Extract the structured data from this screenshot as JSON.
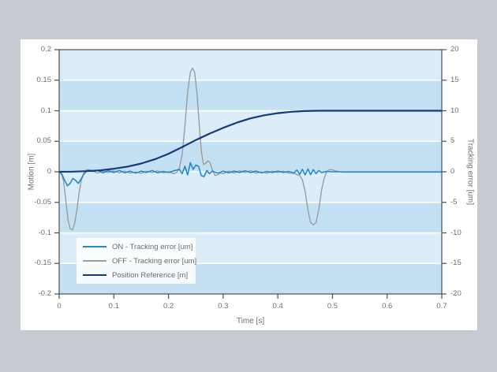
{
  "window": {
    "background_color": "#c7cbd1",
    "panel_color": "#ffffff"
  },
  "chart_data": {
    "type": "line",
    "title": "",
    "xlabel": "Time [s]",
    "ylabel_left": "Motion [m]",
    "ylabel_right": "Tracking error [um]",
    "xlim": [
      0,
      0.7
    ],
    "ylim_left": [
      -0.2,
      0.2
    ],
    "ylim_right": [
      -20,
      20
    ],
    "x_ticks": [
      "0",
      "0.1",
      "0.2",
      "0.3",
      "0.4",
      "0.5",
      "0.6",
      "0.7"
    ],
    "left_ticks": [
      "0.2",
      "0.15",
      "0.1",
      "0.05",
      "0",
      "-0.05",
      "-0.1",
      "-0.15",
      "-0.2"
    ],
    "right_ticks": [
      "20",
      "15",
      "10",
      "5",
      "0",
      "-5",
      "-10",
      "-15",
      "-20"
    ],
    "grid": "alternating horizontal bands every 0.05 with white separator lines, no vertical gridlines",
    "legend_position": "bottom-left inside plot",
    "colors": {
      "band_light": "#daedf8",
      "band_dark": "#c3e1f2",
      "gridline": "#ffffff",
      "axis_frame": "#4d4d4d",
      "tick_text": "#6f6f6f"
    },
    "series": [
      {
        "name": "ON - Tracking error [um]",
        "axis": "right",
        "color": "#2289cb",
        "width": 1.6,
        "z": 2,
        "points": [
          [
            0,
            0
          ],
          [
            0.005,
            -0.4
          ],
          [
            0.01,
            -1.4
          ],
          [
            0.015,
            -2.3
          ],
          [
            0.02,
            -1.9
          ],
          [
            0.025,
            -1.1
          ],
          [
            0.03,
            -1.4
          ],
          [
            0.035,
            -1.9
          ],
          [
            0.04,
            -1.2
          ],
          [
            0.045,
            -0.4
          ],
          [
            0.05,
            0.1
          ],
          [
            0.055,
            0.25
          ],
          [
            0.06,
            0.05
          ],
          [
            0.07,
            0.2
          ],
          [
            0.08,
            -0.15
          ],
          [
            0.09,
            0.15
          ],
          [
            0.1,
            -0.1
          ],
          [
            0.11,
            0.2
          ],
          [
            0.12,
            -0.15
          ],
          [
            0.13,
            0.1
          ],
          [
            0.14,
            -0.2
          ],
          [
            0.15,
            0.1
          ],
          [
            0.16,
            -0.1
          ],
          [
            0.17,
            0.2
          ],
          [
            0.18,
            -0.15
          ],
          [
            0.19,
            0.05
          ],
          [
            0.2,
            -0.1
          ],
          [
            0.21,
            0.15
          ],
          [
            0.22,
            0.4
          ],
          [
            0.225,
            -0.3
          ],
          [
            0.23,
            0.9
          ],
          [
            0.235,
            -0.5
          ],
          [
            0.24,
            1.5
          ],
          [
            0.245,
            0.4
          ],
          [
            0.25,
            1.1
          ],
          [
            0.255,
            0.9
          ],
          [
            0.26,
            -0.6
          ],
          [
            0.265,
            -0.8
          ],
          [
            0.27,
            0.2
          ],
          [
            0.275,
            -0.3
          ],
          [
            0.28,
            0.1
          ],
          [
            0.29,
            -0.2
          ],
          [
            0.3,
            0.1
          ],
          [
            0.31,
            -0.15
          ],
          [
            0.32,
            0.1
          ],
          [
            0.33,
            -0.1
          ],
          [
            0.34,
            0.15
          ],
          [
            0.35,
            -0.1
          ],
          [
            0.36,
            0.1
          ],
          [
            0.37,
            -0.15
          ],
          [
            0.38,
            0.05
          ],
          [
            0.39,
            -0.1
          ],
          [
            0.4,
            0.1
          ],
          [
            0.41,
            -0.1
          ],
          [
            0.42,
            0.05
          ],
          [
            0.43,
            -0.15
          ],
          [
            0.435,
            0.3
          ],
          [
            0.44,
            -0.4
          ],
          [
            0.445,
            0.4
          ],
          [
            0.45,
            -0.5
          ],
          [
            0.455,
            0.45
          ],
          [
            0.46,
            -0.45
          ],
          [
            0.465,
            0.35
          ],
          [
            0.47,
            -0.3
          ],
          [
            0.475,
            0.2
          ],
          [
            0.48,
            -0.1
          ],
          [
            0.49,
            0.05
          ],
          [
            0.5,
            0
          ],
          [
            0.55,
            0
          ],
          [
            0.6,
            0
          ],
          [
            0.65,
            0
          ],
          [
            0.7,
            0
          ]
        ]
      },
      {
        "name": "OFF - Tracking error [um]",
        "axis": "right",
        "color": "#9d9d9d",
        "width": 1.4,
        "z": 1,
        "points": [
          [
            0,
            0
          ],
          [
            0.004,
            -0.3
          ],
          [
            0.008,
            -1.5
          ],
          [
            0.012,
            -4.5
          ],
          [
            0.016,
            -7.8
          ],
          [
            0.02,
            -9.3
          ],
          [
            0.024,
            -9.5
          ],
          [
            0.028,
            -8.6
          ],
          [
            0.032,
            -6.5
          ],
          [
            0.036,
            -3.8
          ],
          [
            0.04,
            -1.6
          ],
          [
            0.044,
            -0.4
          ],
          [
            0.048,
            0.2
          ],
          [
            0.052,
            0.4
          ],
          [
            0.06,
            0.2
          ],
          [
            0.07,
            -0.2
          ],
          [
            0.08,
            0.1
          ],
          [
            0.09,
            -0.1
          ],
          [
            0.1,
            0.15
          ],
          [
            0.11,
            -0.15
          ],
          [
            0.12,
            0.1
          ],
          [
            0.13,
            -0.2
          ],
          [
            0.14,
            0
          ],
          [
            0.15,
            -0.25
          ],
          [
            0.16,
            0.1
          ],
          [
            0.17,
            -0.1
          ],
          [
            0.18,
            0.15
          ],
          [
            0.19,
            -0.15
          ],
          [
            0.2,
            0
          ],
          [
            0.21,
            -0.3
          ],
          [
            0.215,
            -0.1
          ],
          [
            0.22,
            0.6
          ],
          [
            0.225,
            2.8
          ],
          [
            0.23,
            7.5
          ],
          [
            0.235,
            13
          ],
          [
            0.24,
            16.3
          ],
          [
            0.244,
            17
          ],
          [
            0.248,
            16.2
          ],
          [
            0.252,
            13
          ],
          [
            0.256,
            8
          ],
          [
            0.26,
            3.5
          ],
          [
            0.264,
            1.2
          ],
          [
            0.268,
            1.4
          ],
          [
            0.272,
            1.8
          ],
          [
            0.276,
            1.5
          ],
          [
            0.28,
            0.4
          ],
          [
            0.285,
            -0.6
          ],
          [
            0.29,
            -0.5
          ],
          [
            0.295,
            -0.2
          ],
          [
            0.3,
            -0.3
          ],
          [
            0.31,
            0.1
          ],
          [
            0.32,
            -0.2
          ],
          [
            0.33,
            0.15
          ],
          [
            0.34,
            -0.1
          ],
          [
            0.35,
            0.2
          ],
          [
            0.36,
            -0.2
          ],
          [
            0.37,
            0
          ],
          [
            0.38,
            -0.25
          ],
          [
            0.39,
            0.1
          ],
          [
            0.4,
            -0.1
          ],
          [
            0.41,
            0.1
          ],
          [
            0.42,
            -0.2
          ],
          [
            0.43,
            -0.3
          ],
          [
            0.44,
            -0.6
          ],
          [
            0.445,
            -1.3
          ],
          [
            0.45,
            -3.2
          ],
          [
            0.455,
            -6.2
          ],
          [
            0.46,
            -8.3
          ],
          [
            0.465,
            -8.7
          ],
          [
            0.47,
            -8.3
          ],
          [
            0.475,
            -6.2
          ],
          [
            0.48,
            -3
          ],
          [
            0.485,
            -1
          ],
          [
            0.49,
            0.1
          ],
          [
            0.495,
            0.4
          ],
          [
            0.5,
            0.3
          ],
          [
            0.51,
            0.05
          ],
          [
            0.52,
            -0.05
          ],
          [
            0.55,
            -0.05
          ],
          [
            0.6,
            -0.05
          ],
          [
            0.65,
            -0.05
          ],
          [
            0.7,
            -0.05
          ]
        ]
      },
      {
        "name": "Position Reference [m]",
        "axis": "left",
        "color": "#16397d",
        "width": 2.2,
        "z": 3,
        "points": [
          [
            0,
            0
          ],
          [
            0.025,
            0.0002
          ],
          [
            0.05,
            0.001
          ],
          [
            0.075,
            0.0025
          ],
          [
            0.1,
            0.005
          ],
          [
            0.125,
            0.0085
          ],
          [
            0.15,
            0.0135
          ],
          [
            0.175,
            0.0205
          ],
          [
            0.2,
            0.0295
          ],
          [
            0.225,
            0.0405
          ],
          [
            0.25,
            0.052
          ],
          [
            0.275,
            0.0625
          ],
          [
            0.3,
            0.072
          ],
          [
            0.325,
            0.0805
          ],
          [
            0.35,
            0.0875
          ],
          [
            0.375,
            0.0925
          ],
          [
            0.4,
            0.096
          ],
          [
            0.425,
            0.0983
          ],
          [
            0.45,
            0.0995
          ],
          [
            0.475,
            0.1
          ],
          [
            0.5,
            0.1
          ],
          [
            0.55,
            0.1
          ],
          [
            0.6,
            0.1
          ],
          [
            0.65,
            0.1
          ],
          [
            0.7,
            0.1
          ]
        ]
      }
    ],
    "legend": {
      "entries": [
        {
          "label": "ON - Tracking error [um]",
          "color": "#2289cb"
        },
        {
          "label": "OFF - Tracking error [um]",
          "color": "#9d9d9d"
        },
        {
          "label": "Position Reference [m]",
          "color": "#16397d"
        }
      ]
    }
  }
}
